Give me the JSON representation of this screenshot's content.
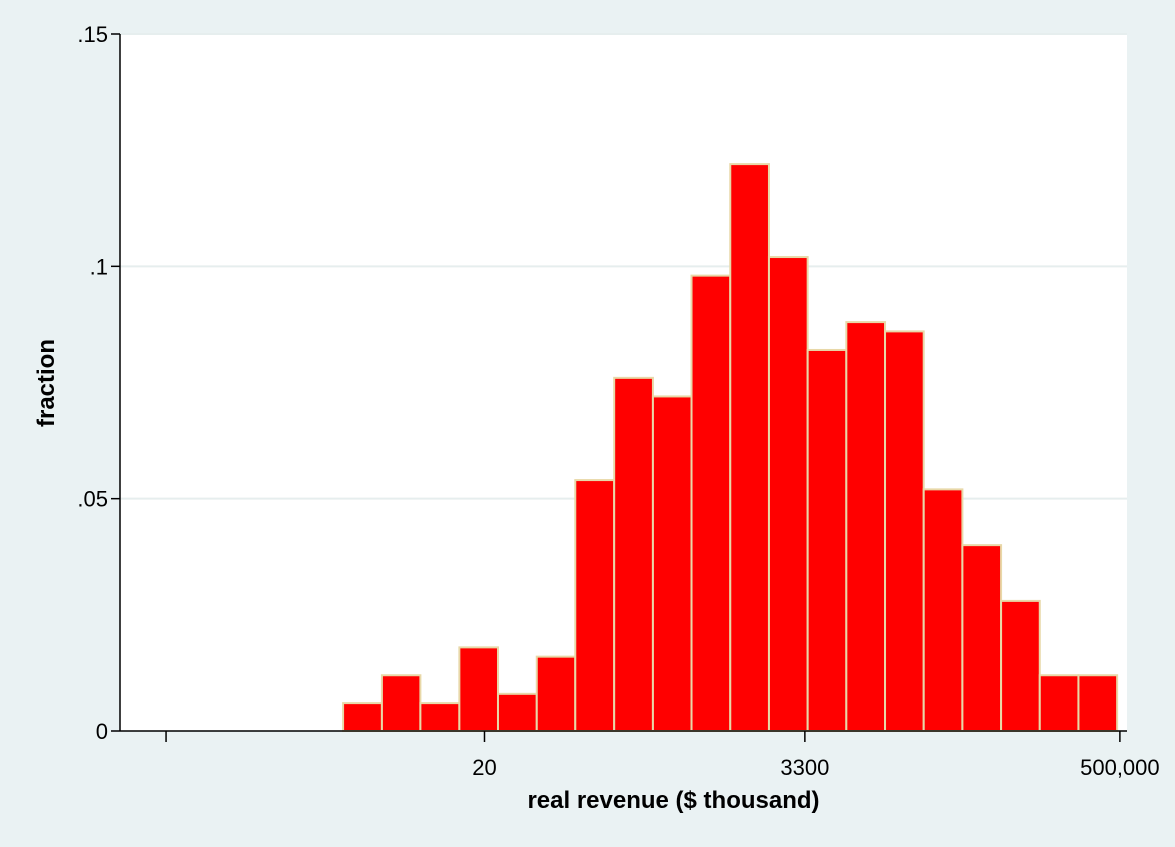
{
  "chart_data": {
    "type": "bar",
    "title": "",
    "xlabel": "real revenue ($ thousand)",
    "ylabel": "fraction",
    "ylim": [
      0,
      0.15
    ],
    "yticks": [
      {
        "value": 0,
        "label": "0"
      },
      {
        "value": 0.05,
        "label": ".05"
      },
      {
        "value": 0.1,
        "label": ".1"
      },
      {
        "value": 0.15,
        "label": ".15"
      }
    ],
    "xticks": [
      {
        "value": 0.125,
        "label": ""
      },
      {
        "value": 20,
        "label": "20"
      },
      {
        "value": 3300,
        "label": "3300"
      },
      {
        "value": 500000,
        "label": "500,000"
      }
    ],
    "xscale": "log",
    "bins": [
      {
        "from": 2.1,
        "to": 3.9,
        "value": 0.006
      },
      {
        "from": 3.9,
        "to": 7.2,
        "value": 0.012
      },
      {
        "from": 7.2,
        "to": 13.4,
        "value": 0.006
      },
      {
        "from": 13.4,
        "to": 24.8,
        "value": 0.018
      },
      {
        "from": 24.8,
        "to": 46,
        "value": 0.008
      },
      {
        "from": 46,
        "to": 85,
        "value": 0.016
      },
      {
        "from": 85,
        "to": 158,
        "value": 0.054
      },
      {
        "from": 158,
        "to": 293,
        "value": 0.076
      },
      {
        "from": 293,
        "to": 542,
        "value": 0.072
      },
      {
        "from": 542,
        "to": 1005,
        "value": 0.098
      },
      {
        "from": 1005,
        "to": 1862,
        "value": 0.122
      },
      {
        "from": 1862,
        "to": 3450,
        "value": 0.102
      },
      {
        "from": 3450,
        "to": 6390,
        "value": 0.082
      },
      {
        "from": 6390,
        "to": 11840,
        "value": 0.088
      },
      {
        "from": 11840,
        "to": 21930,
        "value": 0.086
      },
      {
        "from": 21930,
        "to": 40630,
        "value": 0.052
      },
      {
        "from": 40630,
        "to": 75270,
        "value": 0.04
      },
      {
        "from": 75270,
        "to": 139450,
        "value": 0.028
      },
      {
        "from": 139450,
        "to": 258330,
        "value": 0.012
      },
      {
        "from": 258330,
        "to": 478570,
        "value": 0.012
      }
    ],
    "grid": true,
    "colors": {
      "bar_fill": "#ff0000",
      "bar_edge": "#e8d8a8",
      "plot_background": "#ffffff",
      "outer_background": "#eaf2f3",
      "grid": "#e6eeee"
    }
  }
}
